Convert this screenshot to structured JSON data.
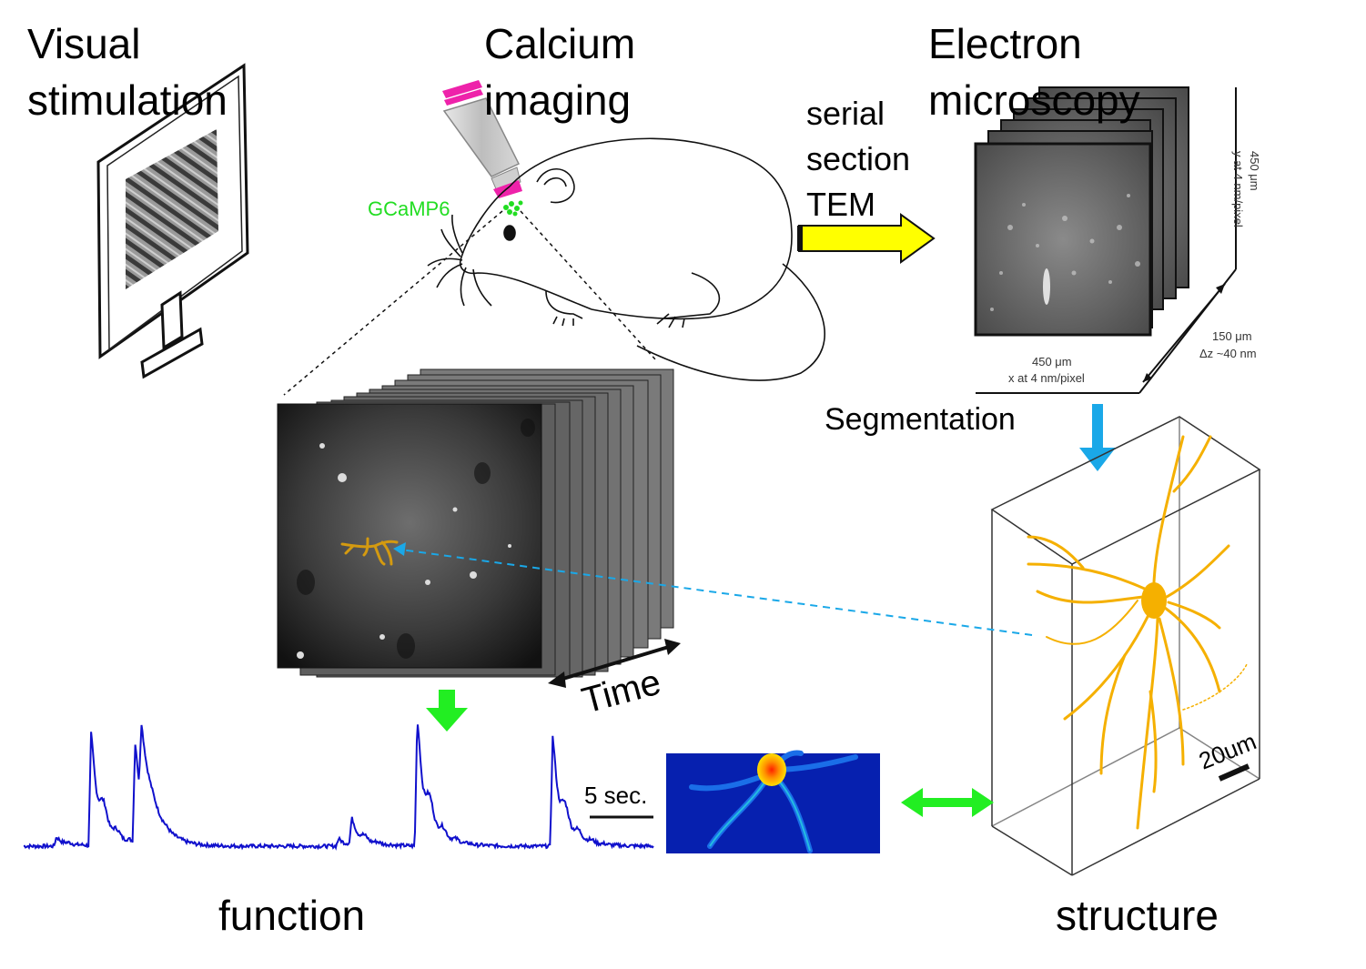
{
  "titles": {
    "visual_line1": "Visual",
    "visual_line2": "stimulation",
    "calcium_line1": "Calcium",
    "calcium_line2": "imaging",
    "em_line1": "Electron",
    "em_line2": "microscopy"
  },
  "labels": {
    "gcamp": "GCaMP6",
    "serial": "serial",
    "section": "section",
    "tem": "TEM",
    "segmentation": "Segmentation",
    "time": "Time",
    "scale_sec": "5 sec.",
    "scale_um": "20um",
    "function": "function",
    "structure": "structure"
  },
  "em_stack": {
    "y_dim": "450 μm",
    "y_res": "y at 4 nm/pixel",
    "z_dim": "150 μm",
    "z_res": "Δz ~40 nm",
    "x_dim": "450 μm",
    "x_res": "x at 4 nm/pixel"
  },
  "colors": {
    "gcamp_green": "#22dd22",
    "trace_blue": "#1010cc",
    "neuron_orange": "#f5b000",
    "arrow_yellow": "#ffff00",
    "arrow_cyan": "#1aa8e8",
    "arrow_green": "#22ee22",
    "objective_pink": "#ee22aa"
  },
  "icons": {
    "monitor": "monitor-icon",
    "mouse": "mouse-icon",
    "objective": "microscope-objective-icon"
  },
  "trace": {
    "units": "seconds",
    "peaks": [
      {
        "t": 10.7,
        "amp": 0.62
      },
      {
        "t": 17.7,
        "amp": 0.55
      },
      {
        "t": 18.7,
        "amp": 0.42
      },
      {
        "t": 52.1,
        "amp": 0.14
      },
      {
        "t": 62.5,
        "amp": 0.7
      },
      {
        "t": 84.0,
        "amp": 0.6
      },
      {
        "t": 5.2,
        "amp": 0.05
      },
      {
        "t": 50.0,
        "amp": 0.04
      }
    ]
  }
}
